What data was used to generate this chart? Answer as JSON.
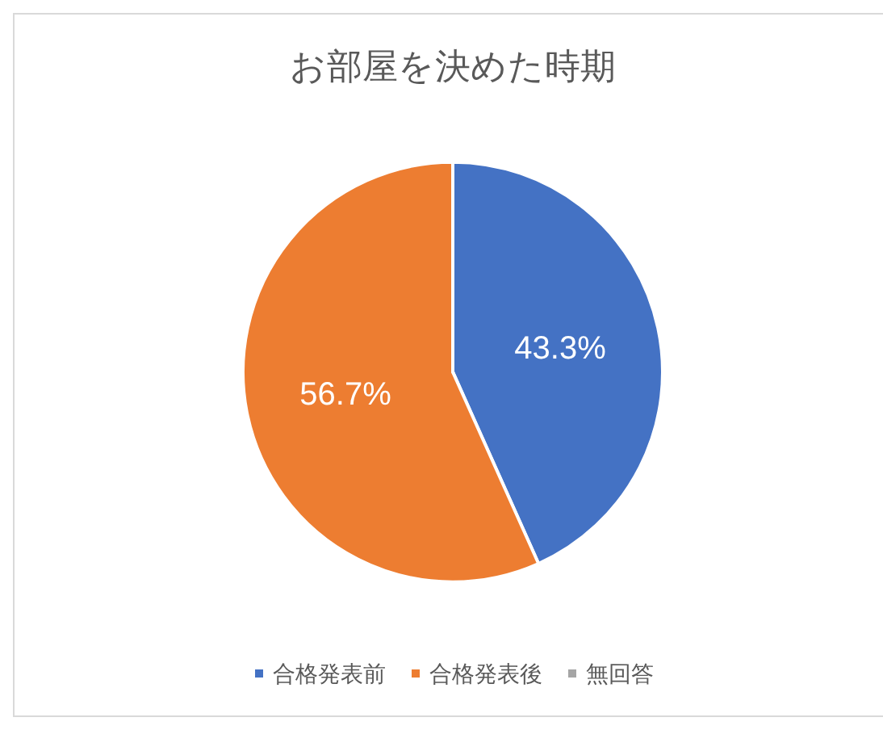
{
  "chart_data": {
    "type": "pie",
    "title": "お部屋を決めた時期",
    "categories": [
      "合格発表前",
      "合格発表後",
      "無回答"
    ],
    "values": [
      43.3,
      56.7,
      0
    ],
    "colors": [
      "#4472c4",
      "#ed7d31",
      "#a5a5a5"
    ],
    "value_labels": [
      "43.3%",
      "56.7%",
      null
    ],
    "legend": "bottom"
  }
}
